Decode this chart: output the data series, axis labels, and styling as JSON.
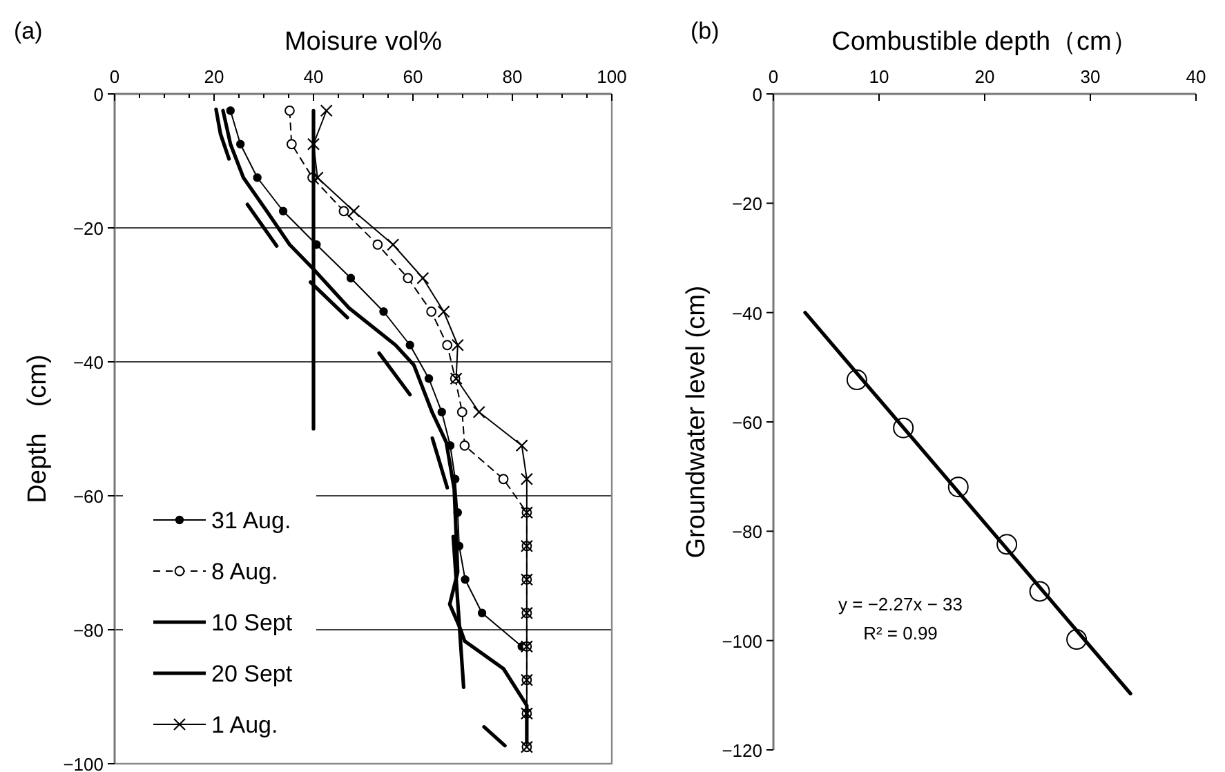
{
  "chart_data": [
    {
      "type": "line",
      "title": "(a)",
      "xlabel": "Moisure vol%",
      "ylabel": "Depth　(cm)",
      "xlim": [
        0,
        100
      ],
      "ylim": [
        -100,
        0
      ],
      "xticks": [
        0,
        {
          "value": 5,
          "label": null
        },
        {
          "value": 10,
          "label": null
        },
        {
          "value": 15,
          "label": null
        },
        20,
        {
          "value": 25,
          "label": null
        },
        {
          "value": 30,
          "label": null
        },
        {
          "value": 35,
          "label": null
        },
        40,
        {
          "value": 45,
          "label": null
        },
        {
          "value": 50,
          "label": null
        },
        {
          "value": 55,
          "label": null
        },
        60,
        {
          "value": 65,
          "label": null
        },
        {
          "value": 70,
          "label": null
        },
        {
          "value": 75,
          "label": null
        },
        80,
        {
          "value": 85,
          "label": null
        },
        {
          "value": 90,
          "label": null
        },
        {
          "value": 95,
          "label": null
        },
        100
      ],
      "yticks": [
        0,
        {
          "value": -20,
          "label": "−20"
        },
        {
          "value": -40,
          "label": "−40"
        },
        {
          "value": -60,
          "label": "−60"
        },
        {
          "value": -80,
          "label": "−80"
        },
        {
          "value": -100,
          "label": "−100"
        }
      ],
      "grid": "y",
      "legend": "bottom left",
      "series": [
        {
          "name": "31 Aug.",
          "color": "#000000",
          "marker": "circle",
          "line_style": "solid",
          "x": [
            23.3,
            25.3,
            28.7,
            33.9,
            40.6,
            47.5,
            54.1,
            59.4,
            63.2,
            65.8,
            67.5,
            68.5,
            69.0,
            69.3,
            70.5,
            73.9,
            81.9
          ],
          "values": [
            -2.5,
            -7.5,
            -12.5,
            -17.5,
            -22.5,
            -27.5,
            -32.5,
            -37.5,
            -42.5,
            -47.5,
            -52.5,
            -57.5,
            -62.5,
            -67.5,
            -72.5,
            -77.5,
            -82.5
          ]
        },
        {
          "name": "8 Aug.",
          "color": "#000000",
          "marker": "circle",
          "line_style": "dashed",
          "x": [
            35.2,
            35.6,
            39.8,
            46.1,
            52.9,
            59.0,
            63.7,
            66.9,
            68.5,
            69.9,
            70.4,
            78.2,
            82.9,
            82.9,
            82.9,
            82.9,
            82.9,
            82.9,
            82.9,
            82.9
          ],
          "values": [
            -2.5,
            -7.5,
            -12.5,
            -17.5,
            -22.5,
            -27.5,
            -32.5,
            -37.5,
            -42.5,
            -47.5,
            -52.5,
            -57.5,
            -62.5,
            -67.5,
            -72.5,
            -77.5,
            -82.5,
            -87.5,
            -92.5,
            -97.5
          ]
        },
        {
          "name": "10 Sept",
          "color": "#000000",
          "marker": "none",
          "line_style": "solid",
          "x": [
            21.8,
            23.3,
            25.9,
            30.6,
            35.2,
            39.8,
            47.2,
            56.5,
            60.2,
            63.9,
            66.7,
            68.3,
            68.7,
            69.0,
            67.4,
            69.4,
            70.4,
            78.2,
            82.9,
            82.9
          ],
          "values": [
            -2.5,
            -7.5,
            -12.5,
            -17.5,
            -22.5,
            -26.0,
            -32.0,
            -37.5,
            -40.5,
            -47.6,
            -52.0,
            -59.0,
            -65.9,
            -71.4,
            -76.2,
            -79.6,
            -81.7,
            -85.8,
            -91.3,
            -96.8
          ]
        },
        {
          "name": "20 Sept",
          "color": "#000000",
          "marker": "none",
          "line_style": "solid",
          "x": [
            20.4,
            21.3,
            23.0,
            null,
            26.7,
            32.6,
            null,
            39.4,
            46.8,
            null,
            53.2,
            59.4,
            null,
            63.9,
            66.9,
            null,
            68.1,
            70.2,
            null,
            74.3,
            78.5
          ],
          "values": [
            -2.3,
            -6.0,
            -9.7,
            null,
            -16.5,
            -22.7,
            null,
            -28.1,
            -33.4,
            null,
            -38.7,
            -44.9,
            null,
            -51.4,
            -58.8,
            null,
            -66.1,
            -88.6,
            null,
            -94.5,
            -97.3
          ]
        },
        {
          "name": "1 Aug.",
          "color": "#000000",
          "marker": "cross",
          "line_style": "solid",
          "x": [
            42.6,
            40.0,
            40.8,
            48.1,
            56.0,
            62.0,
            66.2,
            69.0,
            68.7,
            73.3,
            81.9,
            82.9,
            82.9,
            82.9,
            82.9,
            82.9,
            82.9,
            82.9,
            82.9,
            82.9
          ],
          "values": [
            -2.5,
            -7.5,
            -12.5,
            -17.5,
            -22.5,
            -27.5,
            -32.5,
            -37.5,
            -42.5,
            -47.5,
            -52.5,
            -57.5,
            -62.5,
            -67.5,
            -72.5,
            -77.5,
            -82.5,
            -87.5,
            -92.5,
            -97.5
          ]
        },
        {
          "color": "#000000",
          "marker": "none",
          "line_style": "solid",
          "x": [
            40,
            40
          ],
          "values": [
            -2.5,
            -50
          ]
        }
      ]
    },
    {
      "type": "scatter",
      "title": "(b)",
      "xlabel": "Combustible depth（cm）",
      "ylabel": "Groundwater level (cm)",
      "xlim": [
        0,
        40
      ],
      "ylim": [
        -120,
        0
      ],
      "xticks": [
        0,
        10,
        20,
        30,
        40
      ],
      "yticks": [
        0,
        {
          "value": -20,
          "label": "−20"
        },
        {
          "value": -40,
          "label": "−40"
        },
        {
          "value": -60,
          "label": "−60"
        },
        {
          "value": -80,
          "label": "−80"
        },
        {
          "value": -100,
          "label": "−100"
        },
        {
          "value": -120,
          "label": "−120"
        }
      ],
      "annotations": [
        "y = −2.27x − 33",
        "R² = 0.99"
      ],
      "series": [
        {
          "color": "#000000",
          "marker": "circle",
          "x": [
            7.9,
            12.3,
            17.5,
            22.1,
            25.2,
            28.7
          ],
          "values": [
            -52.3,
            -61.1,
            -71.9,
            -82.4,
            -91.0,
            -99.8
          ]
        },
        {
          "type": "line",
          "color": "#000000",
          "marker": "none",
          "line_style": "solid",
          "x": [
            3,
            33.8
          ],
          "values": [
            -40,
            -109.7
          ]
        }
      ]
    }
  ]
}
